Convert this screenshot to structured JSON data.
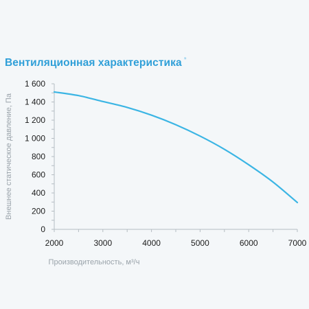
{
  "header": {
    "title": "Вентиляционная характеристика",
    "title_mark": "*"
  },
  "chart_data": {
    "type": "line",
    "title": "Вентиляционная характеристика *",
    "xlabel": "Производительность, м³/ч",
    "ylabel": "Внешнее статическое давление, Па",
    "xlim": [
      2000,
      7000
    ],
    "ylim": [
      0,
      1600
    ],
    "xticks": [
      2000,
      3000,
      4000,
      5000,
      6000,
      7000
    ],
    "xtick_labels": [
      "2000",
      "3000",
      "4000",
      "5000",
      "6000",
      "7000"
    ],
    "yticks": [
      0,
      200,
      400,
      600,
      800,
      1000,
      1200,
      1400,
      1600
    ],
    "ytick_labels": [
      "0",
      "200",
      "400",
      "600",
      "800",
      "1 000",
      "1 200",
      "1 400",
      "1 600"
    ],
    "grid": false,
    "series": [
      {
        "color": "#3bb5e4",
        "x": [
          2000,
          2500,
          3000,
          3500,
          4000,
          4500,
          5000,
          5500,
          6000,
          6500,
          7000
        ],
        "y": [
          1510,
          1470,
          1405,
          1340,
          1255,
          1150,
          1025,
          880,
          710,
          520,
          295
        ]
      }
    ]
  }
}
